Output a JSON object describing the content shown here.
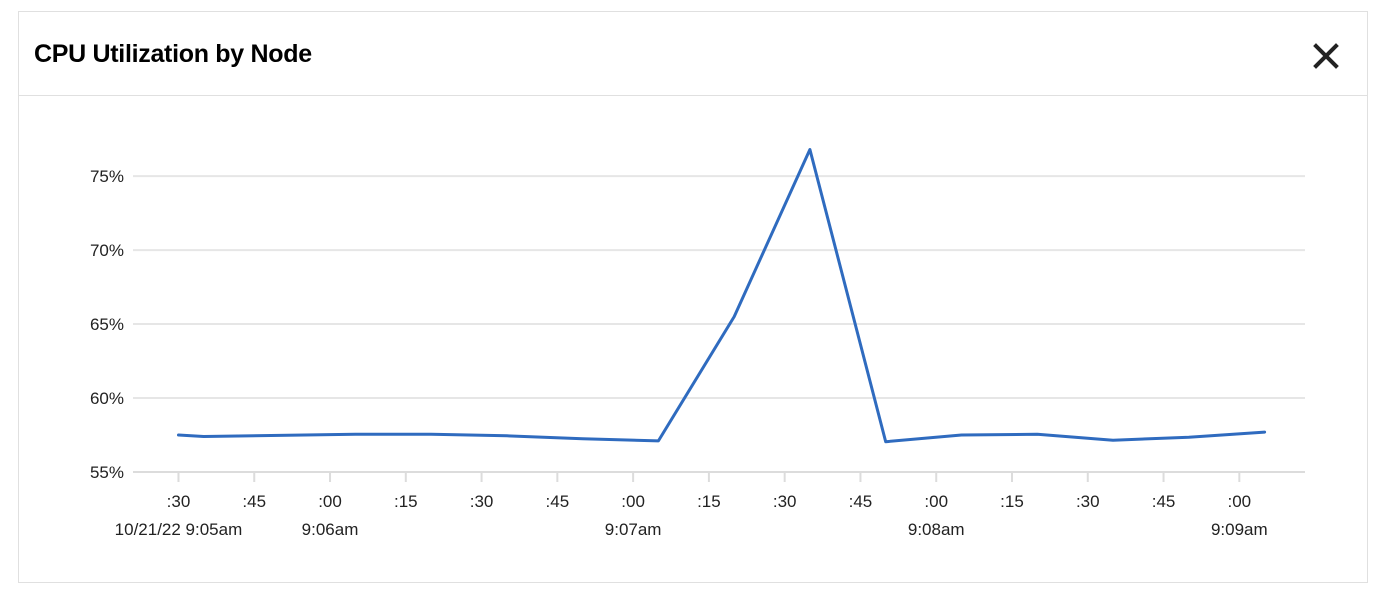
{
  "panel": {
    "title": "CPU Utilization by Node",
    "close_icon": "close-icon"
  },
  "chart_data": {
    "type": "line",
    "title": "CPU Utilization by Node",
    "xlabel": "",
    "ylabel": "",
    "ylim": [
      55,
      77
    ],
    "y_ticks": [
      55,
      60,
      65,
      70,
      75
    ],
    "y_tick_suffix": "%",
    "grid": true,
    "legend": "none",
    "x_unit": "seconds",
    "x_range": [
      "9:05:21",
      "9:09:13"
    ],
    "x_ticks": [
      {
        "time": "9:05:30",
        "label": ":30",
        "sublabel": "10/21/22 9:05am"
      },
      {
        "time": "9:05:45",
        "label": ":45",
        "sublabel": ""
      },
      {
        "time": "9:06:00",
        "label": ":00",
        "sublabel": "9:06am"
      },
      {
        "time": "9:06:15",
        "label": ":15",
        "sublabel": ""
      },
      {
        "time": "9:06:30",
        "label": ":30",
        "sublabel": ""
      },
      {
        "time": "9:06:45",
        "label": ":45",
        "sublabel": ""
      },
      {
        "time": "9:07:00",
        "label": ":00",
        "sublabel": "9:07am"
      },
      {
        "time": "9:07:15",
        "label": ":15",
        "sublabel": ""
      },
      {
        "time": "9:07:30",
        "label": ":30",
        "sublabel": ""
      },
      {
        "time": "9:07:45",
        "label": ":45",
        "sublabel": ""
      },
      {
        "time": "9:08:00",
        "label": ":00",
        "sublabel": "9:08am"
      },
      {
        "time": "9:08:15",
        "label": ":15",
        "sublabel": ""
      },
      {
        "time": "9:08:30",
        "label": ":30",
        "sublabel": ""
      },
      {
        "time": "9:08:45",
        "label": ":45",
        "sublabel": ""
      },
      {
        "time": "9:09:00",
        "label": ":00",
        "sublabel": "9:09am"
      }
    ],
    "series": [
      {
        "color": "#2f6bbf",
        "points": [
          {
            "x": "9:05:30",
            "y": 57.5
          },
          {
            "x": "9:05:35",
            "y": 57.4
          },
          {
            "x": "9:06:05",
            "y": 57.55
          },
          {
            "x": "9:06:20",
            "y": 57.55
          },
          {
            "x": "9:06:35",
            "y": 57.45
          },
          {
            "x": "9:06:50",
            "y": 57.25
          },
          {
            "x": "9:07:05",
            "y": 57.1
          },
          {
            "x": "9:07:20",
            "y": 65.5
          },
          {
            "x": "9:07:35",
            "y": 76.8
          },
          {
            "x": "9:07:50",
            "y": 57.05
          },
          {
            "x": "9:08:05",
            "y": 57.5
          },
          {
            "x": "9:08:20",
            "y": 57.55
          },
          {
            "x": "9:08:35",
            "y": 57.15
          },
          {
            "x": "9:08:50",
            "y": 57.35
          },
          {
            "x": "9:09:05",
            "y": 57.7
          }
        ]
      }
    ]
  }
}
